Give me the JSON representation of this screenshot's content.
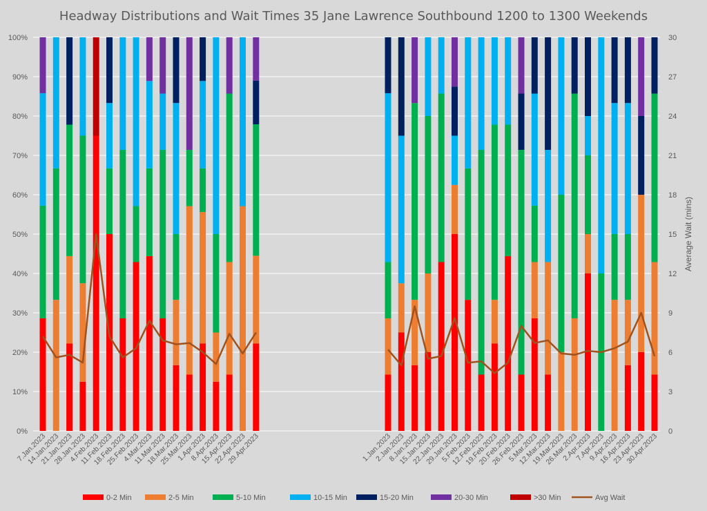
{
  "chart_data": {
    "type": "bar",
    "stacked": true,
    "title": "Headway Distributions and Wait Times 35 Jane  Lawrence Southbound 1200 to 1300 Weekends",
    "ylabel_left": "",
    "ylabel_right": "Average Wait (mins)",
    "ylim_left": [
      0,
      100
    ],
    "ylim_right": [
      0,
      30
    ],
    "yticks_left": [
      "0%",
      "10%",
      "20%",
      "30%",
      "40%",
      "50%",
      "60%",
      "70%",
      "80%",
      "90%",
      "100%"
    ],
    "yticks_right": [
      "0",
      "3",
      "6",
      "9",
      "12",
      "15",
      "18",
      "21",
      "24",
      "27",
      "30"
    ],
    "grid": true,
    "legend_position": "bottom",
    "colors": [
      "#ff0000",
      "#ed7d31",
      "#00b050",
      "#00b0f0",
      "#002060",
      "#7030a0",
      "#c00000"
    ],
    "line_color": "#a0521e",
    "bar_series": [
      "0-2 Min",
      "2-5 Min",
      "5-10 Min",
      "10-15 Min",
      "15-20 Min",
      "20-30 Min",
      ">30 Min"
    ],
    "line_series": "Avg Wait",
    "groups": [
      {
        "categories": [
          "7.Jan.2023",
          "14.Jan.2023",
          "21.Jan.2023",
          "28.Jan.2023",
          "4.Feb.2023",
          "11.Feb.2023",
          "18.Feb.2023",
          "25.Feb.2023",
          "4.Mar.2023",
          "11.Mar.2023",
          "18.Mar.2023",
          "25.Mar.2023",
          "1.Apr.2023",
          "8.Apr.2023",
          "15.Apr.2023",
          "22.Apr.2023",
          "29.Apr.2023"
        ],
        "stacks": [
          [
            28.6,
            0,
            28.6,
            28.6,
            0,
            14.2,
            0
          ],
          [
            0,
            33.3,
            33.4,
            33.3,
            0,
            0,
            0
          ],
          [
            22.2,
            22.2,
            33.4,
            0,
            22.2,
            0,
            0
          ],
          [
            12.5,
            25,
            37.5,
            25,
            0,
            0,
            0
          ],
          [
            75,
            0,
            0,
            0,
            0,
            0,
            25
          ],
          [
            50,
            0,
            16.7,
            16.6,
            16.7,
            0,
            0
          ],
          [
            28.6,
            0,
            42.8,
            28.6,
            0,
            0,
            0
          ],
          [
            42.9,
            0,
            14.2,
            42.9,
            0,
            0,
            0
          ],
          [
            44.4,
            0,
            22.3,
            22.2,
            0,
            11.1,
            0
          ],
          [
            28.6,
            0,
            42.8,
            14.3,
            0,
            14.3,
            0
          ],
          [
            16.7,
            16.6,
            16.7,
            33.3,
            16.7,
            0,
            0
          ],
          [
            14.3,
            42.8,
            14.3,
            0,
            0,
            28.6,
            0
          ],
          [
            22.2,
            33.4,
            11.1,
            22.2,
            11.1,
            0,
            0
          ],
          [
            12.5,
            12.5,
            25,
            50,
            0,
            0,
            0
          ],
          [
            14.3,
            28.6,
            42.8,
            0,
            0,
            14.3,
            0
          ],
          [
            0,
            57.1,
            0,
            42.9,
            0,
            0,
            0
          ],
          [
            22.2,
            22.3,
            33.4,
            0,
            11.1,
            11.0,
            0
          ]
        ],
        "avg_wait": [
          7.2,
          5.6,
          5.8,
          5.2,
          15.0,
          7.2,
          5.6,
          6.3,
          8.4,
          6.9,
          6.6,
          6.7,
          6.0,
          5.1,
          7.4,
          5.9,
          7.5
        ]
      },
      {
        "categories": [
          "1.Jan.2023",
          "2.Jan.2023",
          "8.Jan.2023",
          "15.Jan.2023",
          "22.Jan.2023",
          "29.Jan.2023",
          "5.Feb.2023",
          "12.Feb.2023",
          "19.Feb.2023",
          "20.Feb.2023",
          "26.Feb.2023",
          "5.Mar.2023",
          "12.Mar.2023",
          "19.Mar.2023",
          "26.Mar.2023",
          "2.Apr.2023",
          "7.Apr.2023",
          "9.Apr.2023",
          "16.Apr.2023",
          "23.Apr.2023",
          "30.Apr.2023"
        ],
        "stacks": [
          [
            14.3,
            14.3,
            14.3,
            42.9,
            14.2,
            0,
            0
          ],
          [
            25,
            12.5,
            0,
            37.5,
            25,
            0,
            0
          ],
          [
            16.7,
            16.6,
            50,
            0,
            0,
            16.7,
            0
          ],
          [
            20,
            20,
            40,
            20,
            0,
            0,
            0
          ],
          [
            42.9,
            0,
            42.8,
            14.3,
            0,
            0,
            0
          ],
          [
            50,
            12.5,
            0,
            12.5,
            12.5,
            12.5,
            0
          ],
          [
            33.3,
            0,
            33.4,
            33.3,
            0,
            0,
            0
          ],
          [
            14.3,
            0,
            57.1,
            28.6,
            0,
            0,
            0
          ],
          [
            22.2,
            11.1,
            44.5,
            22.2,
            0,
            0,
            0
          ],
          [
            44.4,
            0,
            33.4,
            22.2,
            0,
            0,
            0
          ],
          [
            14.3,
            0,
            57.1,
            0,
            14.3,
            14.3,
            0
          ],
          [
            28.6,
            14.3,
            14.3,
            28.5,
            14.3,
            0,
            0
          ],
          [
            14.3,
            28.6,
            0,
            28.5,
            28.6,
            0,
            0
          ],
          [
            0,
            20,
            40,
            40,
            0,
            0,
            0
          ],
          [
            0,
            28.6,
            57.1,
            0,
            14.3,
            0,
            0
          ],
          [
            40,
            10,
            20,
            10,
            20,
            0,
            0
          ],
          [
            0,
            0,
            40,
            60,
            0,
            0,
            0
          ],
          [
            0,
            33.3,
            16.7,
            33.3,
            16.7,
            0,
            0
          ],
          [
            16.7,
            16.6,
            16.7,
            33.3,
            16.7,
            0,
            0
          ],
          [
            20,
            40,
            0,
            0,
            20,
            20,
            0
          ],
          [
            14.3,
            28.6,
            42.8,
            0,
            14.3,
            0,
            0
          ]
        ],
        "avg_wait": [
          6.2,
          5.0,
          9.5,
          5.5,
          5.7,
          8.6,
          5.2,
          5.3,
          4.4,
          5.2,
          8.0,
          6.7,
          6.9,
          5.9,
          5.8,
          6.1,
          6.0,
          6.3,
          6.8,
          9.0,
          5.7
        ]
      }
    ]
  }
}
